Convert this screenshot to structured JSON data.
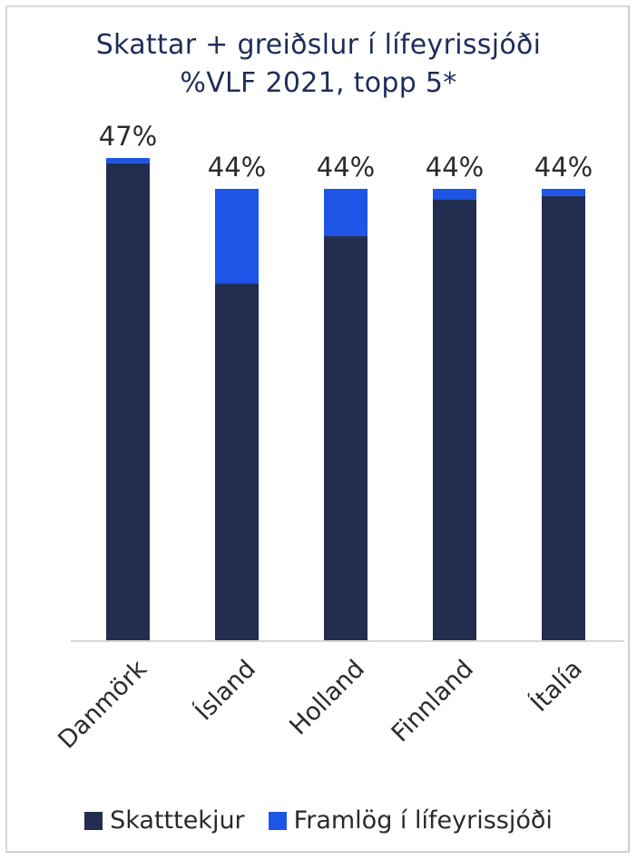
{
  "chart_data": {
    "type": "bar",
    "stacked": true,
    "title_lines": [
      "Skattar + greiðslur í lífeyrissjóði",
      "%VLF 2021, topp 5*"
    ],
    "categories": [
      "Danmörk",
      "Ísland",
      "Holland",
      "Finnland",
      "Ítalía"
    ],
    "series": [
      {
        "name": "Skatttekjur",
        "color": "#232d4f",
        "values": [
          46.5,
          34.8,
          39.4,
          43.0,
          43.3
        ]
      },
      {
        "name": "Framlög í lífeyrissjóði",
        "color": "#1d55e6",
        "values": [
          0.5,
          9.2,
          4.6,
          1.0,
          0.7
        ]
      }
    ],
    "data_labels": [
      "47%",
      "44%",
      "44%",
      "44%",
      "44%"
    ],
    "ylim": [
      0,
      47
    ],
    "grid": false,
    "legend": "bottom"
  }
}
